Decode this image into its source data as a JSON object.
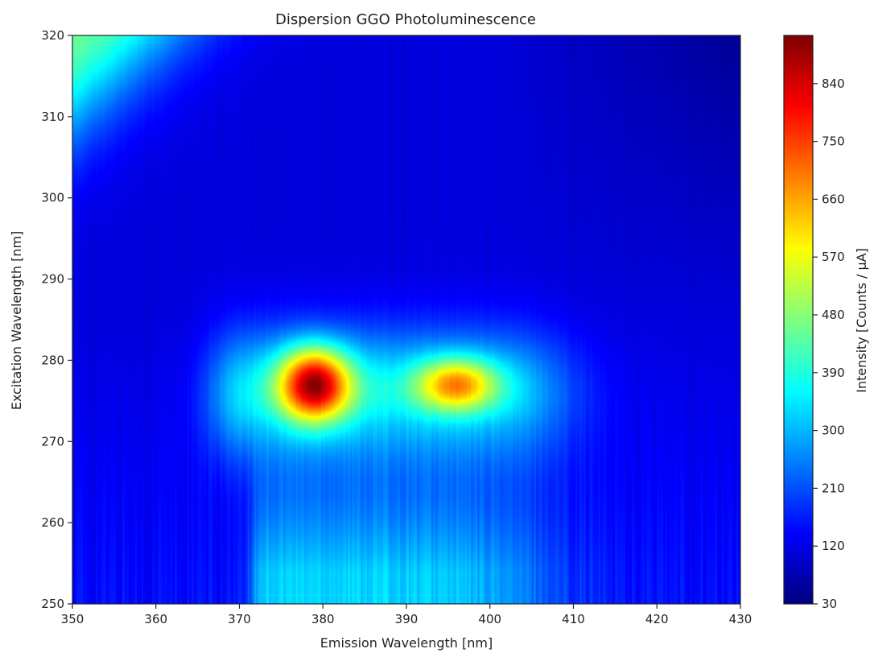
{
  "chart_data": {
    "type": "heatmap",
    "title": "Dispersion GGO Photoluminescence",
    "xlabel": "Emission Wavelength [nm]",
    "ylabel": "Excitation Wavelength [nm]",
    "colorbar_label": "Intensity [Counts / μA]",
    "colormap": "jet",
    "xlim": [
      350,
      430
    ],
    "ylim": [
      250,
      320
    ],
    "clim": [
      30,
      915
    ],
    "x_ticks": [
      350,
      360,
      370,
      380,
      390,
      400,
      410,
      420,
      430
    ],
    "y_ticks": [
      250,
      260,
      270,
      280,
      290,
      300,
      310,
      320
    ],
    "colorbar_ticks": [
      30,
      120,
      210,
      300,
      390,
      480,
      570,
      660,
      750,
      840
    ],
    "features": [
      {
        "name": "main-peak",
        "emission_nm": 379,
        "excitation_nm": 277,
        "intensity": 905
      },
      {
        "name": "secondary-peak",
        "emission_nm": 396,
        "excitation_nm": 277,
        "intensity": 700
      },
      {
        "name": "scatter-corner",
        "emission_nm": 350,
        "excitation_nm": 320,
        "intensity": 450
      }
    ],
    "background_intensity": 110
  }
}
